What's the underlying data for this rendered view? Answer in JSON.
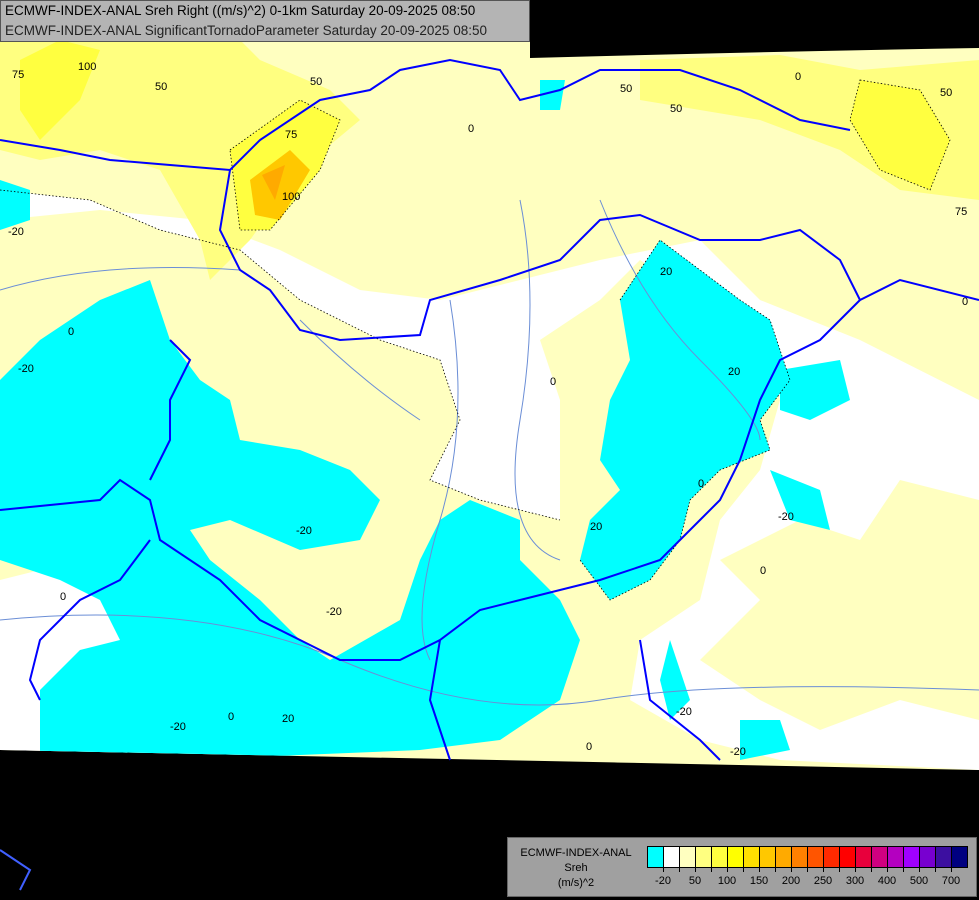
{
  "header": {
    "line1": "ECMWF-INDEX-ANAL Sreh Right ((m/s)^2) 0-1km Saturday 20-09-2025 08:50",
    "line2": "ECMWF-INDEX-ANAL SignificantTornadoParameter Saturday 20-09-2025 08:50"
  },
  "legend": {
    "model": "ECMWF-INDEX-ANAL",
    "variable": "Sreh",
    "unit": "(m/s)^2",
    "colors": [
      "#00ffff",
      "#ffffff",
      "#ffffc0",
      "#ffff80",
      "#ffff40",
      "#ffff00",
      "#ffe000",
      "#ffc800",
      "#ffaa00",
      "#ff8000",
      "#ff5500",
      "#ff2a00",
      "#ff0000",
      "#e8003c",
      "#d00080",
      "#b400c0",
      "#a000ff",
      "#7800d0",
      "#3c0fa0",
      "#000080"
    ],
    "labels": [
      "-20",
      "50",
      "100",
      "150",
      "200",
      "250",
      "300",
      "400",
      "500",
      "700"
    ]
  },
  "map": {
    "contour_labels": [
      "75",
      "100",
      "50",
      "50",
      "0",
      "75",
      "100",
      "-20",
      "0",
      "-20",
      "0",
      "20",
      "20",
      "0",
      "0",
      "-20",
      "-20",
      "-20",
      "20",
      "0",
      "-20",
      "0",
      "-20",
      "0",
      "20",
      "50",
      "50",
      "50",
      "75",
      "0",
      "-20",
      "0"
    ],
    "colors": {
      "negative": "#00ffff",
      "neutral": "#ffffff",
      "low": "#ffffc0",
      "mid": "#ffff80",
      "high": "#ffe000",
      "peak": "#ffaa00",
      "border": "#0000ff",
      "river": "#6b8ed6"
    }
  }
}
